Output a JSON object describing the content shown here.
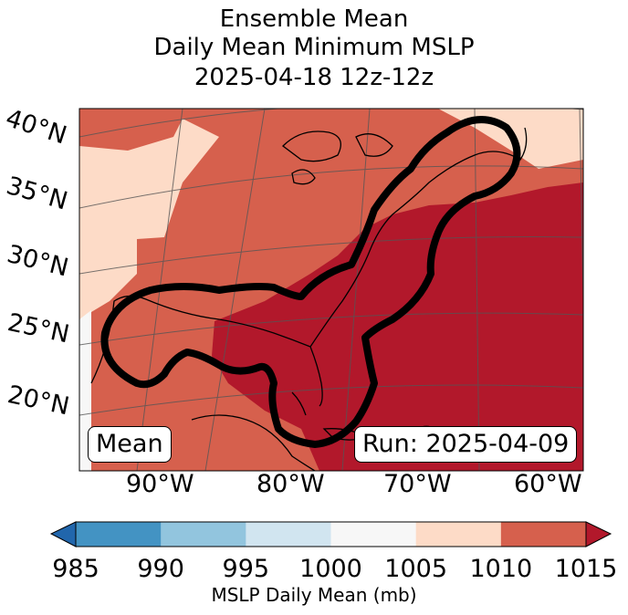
{
  "title": {
    "line1": "Ensemble Mean",
    "line2": "Daily Mean Minimum MSLP",
    "line3": "2025-04-18 12z-12z"
  },
  "map": {
    "lat_labels": [
      "40°N",
      "35°N",
      "30°N",
      "25°N",
      "20°N"
    ],
    "lon_labels": [
      "90°W",
      "80°W",
      "70°W",
      "60°W"
    ],
    "mean_box": "Mean",
    "run_box": "Run: 2025-04-09",
    "contour_color": "#000000"
  },
  "colorbar": {
    "ticks": [
      "985",
      "990",
      "995",
      "1000",
      "1005",
      "1010",
      "1015"
    ],
    "label": "MSLP Daily Mean (mb)",
    "colors": [
      "#2166ac",
      "#4393c3",
      "#92c5de",
      "#d1e5f0",
      "#f7f7f7",
      "#fddbc7",
      "#d6604d",
      "#b2182b"
    ]
  }
}
